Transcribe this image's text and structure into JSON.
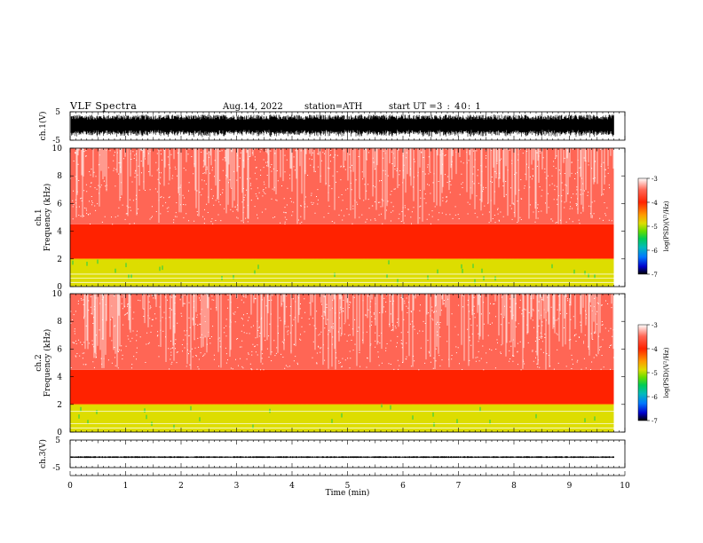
{
  "header": {
    "title": "VLF  Spectra",
    "date": "Aug.14, 2022",
    "station": "station=ATH",
    "start_label": "start  UT  =",
    "start_value": "3 : 40: 1"
  },
  "colors": {
    "colormap": [
      "#000000",
      "#0000cc",
      "#0077ff",
      "#00bbbb",
      "#00cc55",
      "#66dd00",
      "#dddd00",
      "#ff9900",
      "#ff2200",
      "#ff6655",
      "#ffffff"
    ]
  },
  "chart_data": [
    {
      "type": "line",
      "panel": "ch1-waveform",
      "ylabel": "ch.1(V)",
      "ylim": [
        -5,
        5
      ],
      "yticks": [
        "5",
        "-5"
      ],
      "xlim": [
        0,
        10
      ],
      "amplitude_v": 4.0,
      "duration_min": 9.8
    },
    {
      "type": "heatmap",
      "panel": "ch1-spectrogram",
      "ylabel": "ch.1\nFrequency  (kHz)",
      "ylim": [
        0,
        10
      ],
      "yticks": [
        "0",
        "2",
        "4",
        "6",
        "8",
        "10"
      ],
      "xlim": [
        0,
        10
      ],
      "duration_min": 9.8,
      "colorbar": {
        "label": "log(PSD)(V²/Hz)",
        "range": [
          -7,
          -3
        ],
        "ticks": [
          "-3",
          "-4",
          "-5",
          "-6",
          "-7"
        ]
      },
      "bands_khz": [
        {
          "from": 0,
          "to": 2,
          "level": -4.6
        },
        {
          "from": 2,
          "to": 4.5,
          "level": -4.0
        },
        {
          "from": 4.5,
          "to": 10,
          "level": -3.5
        }
      ],
      "lines_khz": [
        0.3,
        0.6,
        0.9,
        2.0
      ]
    },
    {
      "type": "heatmap",
      "panel": "ch2-spectrogram",
      "ylabel": "ch.2\nFrequency  (kHz)",
      "ylim": [
        0,
        10
      ],
      "yticks": [
        "0",
        "2",
        "4",
        "6",
        "8",
        "10"
      ],
      "xlim": [
        0,
        10
      ],
      "duration_min": 9.8,
      "colorbar": {
        "label": "log(PSD)(V²/Hz)",
        "range": [
          -7,
          -3
        ],
        "ticks": [
          "-3",
          "-4",
          "-5",
          "-6",
          "-7"
        ]
      },
      "bands_khz": [
        {
          "from": 0,
          "to": 2,
          "level": -4.6
        },
        {
          "from": 2,
          "to": 4.5,
          "level": -4.0
        },
        {
          "from": 4.5,
          "to": 10,
          "level": -3.5
        }
      ],
      "lines_khz": [
        0.3,
        0.6,
        1.5,
        2.0
      ]
    },
    {
      "type": "line",
      "panel": "ch3-waveform",
      "ylabel": "ch.3(V)",
      "ylim": [
        -5,
        5
      ],
      "yticks": [
        "5",
        "-5"
      ],
      "xlim": [
        0,
        10
      ],
      "baseline_v": 0,
      "amplitude_v": 0.3,
      "duration_min": 9.8,
      "xlabel": "Time  (min)",
      "xticks": [
        "0",
        "1",
        "2",
        "3",
        "4",
        "5",
        "6",
        "7",
        "8",
        "9",
        "10"
      ]
    }
  ]
}
